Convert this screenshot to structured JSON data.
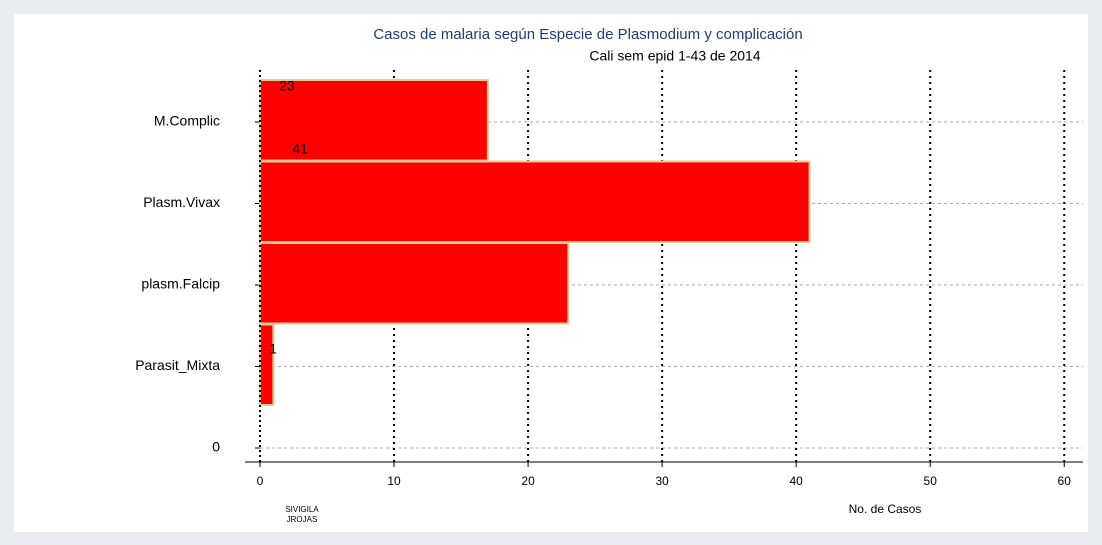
{
  "chart_data": {
    "type": "hbar",
    "title": "Casos de malaria según Especie de Plasmodium y complicación",
    "subtitle": "Cali sem epid 1-43 de 2014",
    "x_label": "No. de Casos",
    "notes": [
      "SIVIGILA",
      "JROJAS"
    ],
    "categories": [
      "M.Complic",
      "Plasm.Vivax",
      "plasm.Falcip",
      "Parasit_Mixta",
      "0"
    ],
    "values": [
      17,
      41,
      23,
      1,
      null
    ],
    "value_labels": [
      null,
      "41",
      "23",
      "1",
      null
    ],
    "color": "#ff0000",
    "xlim": [
      0,
      61.4
    ],
    "xticks": [
      0,
      10,
      20,
      30,
      40,
      50,
      60
    ],
    "grid": true
  }
}
